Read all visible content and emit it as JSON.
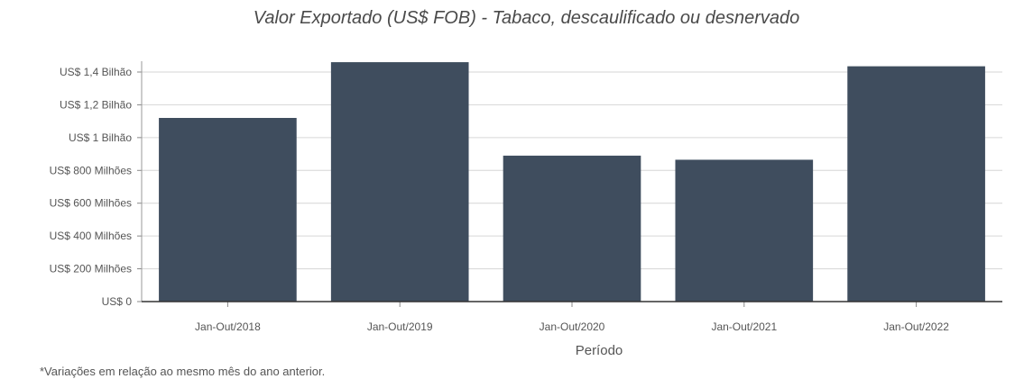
{
  "chart_data": {
    "type": "bar",
    "title": "Valor Exportado (US$ FOB) - Tabaco, descaulificado ou desnervado",
    "xlabel": "Período",
    "ylabel": "",
    "categories": [
      "Jan-Out/2018",
      "Jan-Out/2019",
      "Jan-Out/2020",
      "Jan-Out/2021",
      "Jan-Out/2022"
    ],
    "values": [
      1120000000,
      1460000000,
      890000000,
      865000000,
      1435000000
    ],
    "ylim": [
      0,
      1400000000
    ],
    "yticks": [
      {
        "value": 0,
        "label": "US$ 0"
      },
      {
        "value": 200000000,
        "label": "US$ 200 Milhões"
      },
      {
        "value": 400000000,
        "label": "US$ 400 Milhões"
      },
      {
        "value": 600000000,
        "label": "US$ 600 Milhões"
      },
      {
        "value": 800000000,
        "label": "US$ 800 Milhões"
      },
      {
        "value": 1000000000,
        "label": "US$ 1 Bilhão"
      },
      {
        "value": 1200000000,
        "label": "US$ 1,2 Bilhão"
      },
      {
        "value": 1400000000,
        "label": "US$ 1,4 Bilhão"
      }
    ],
    "grid": true,
    "bar_color": "#3f4d5e"
  },
  "footnote": "*Variações em relação ao mesmo mês do ano anterior."
}
